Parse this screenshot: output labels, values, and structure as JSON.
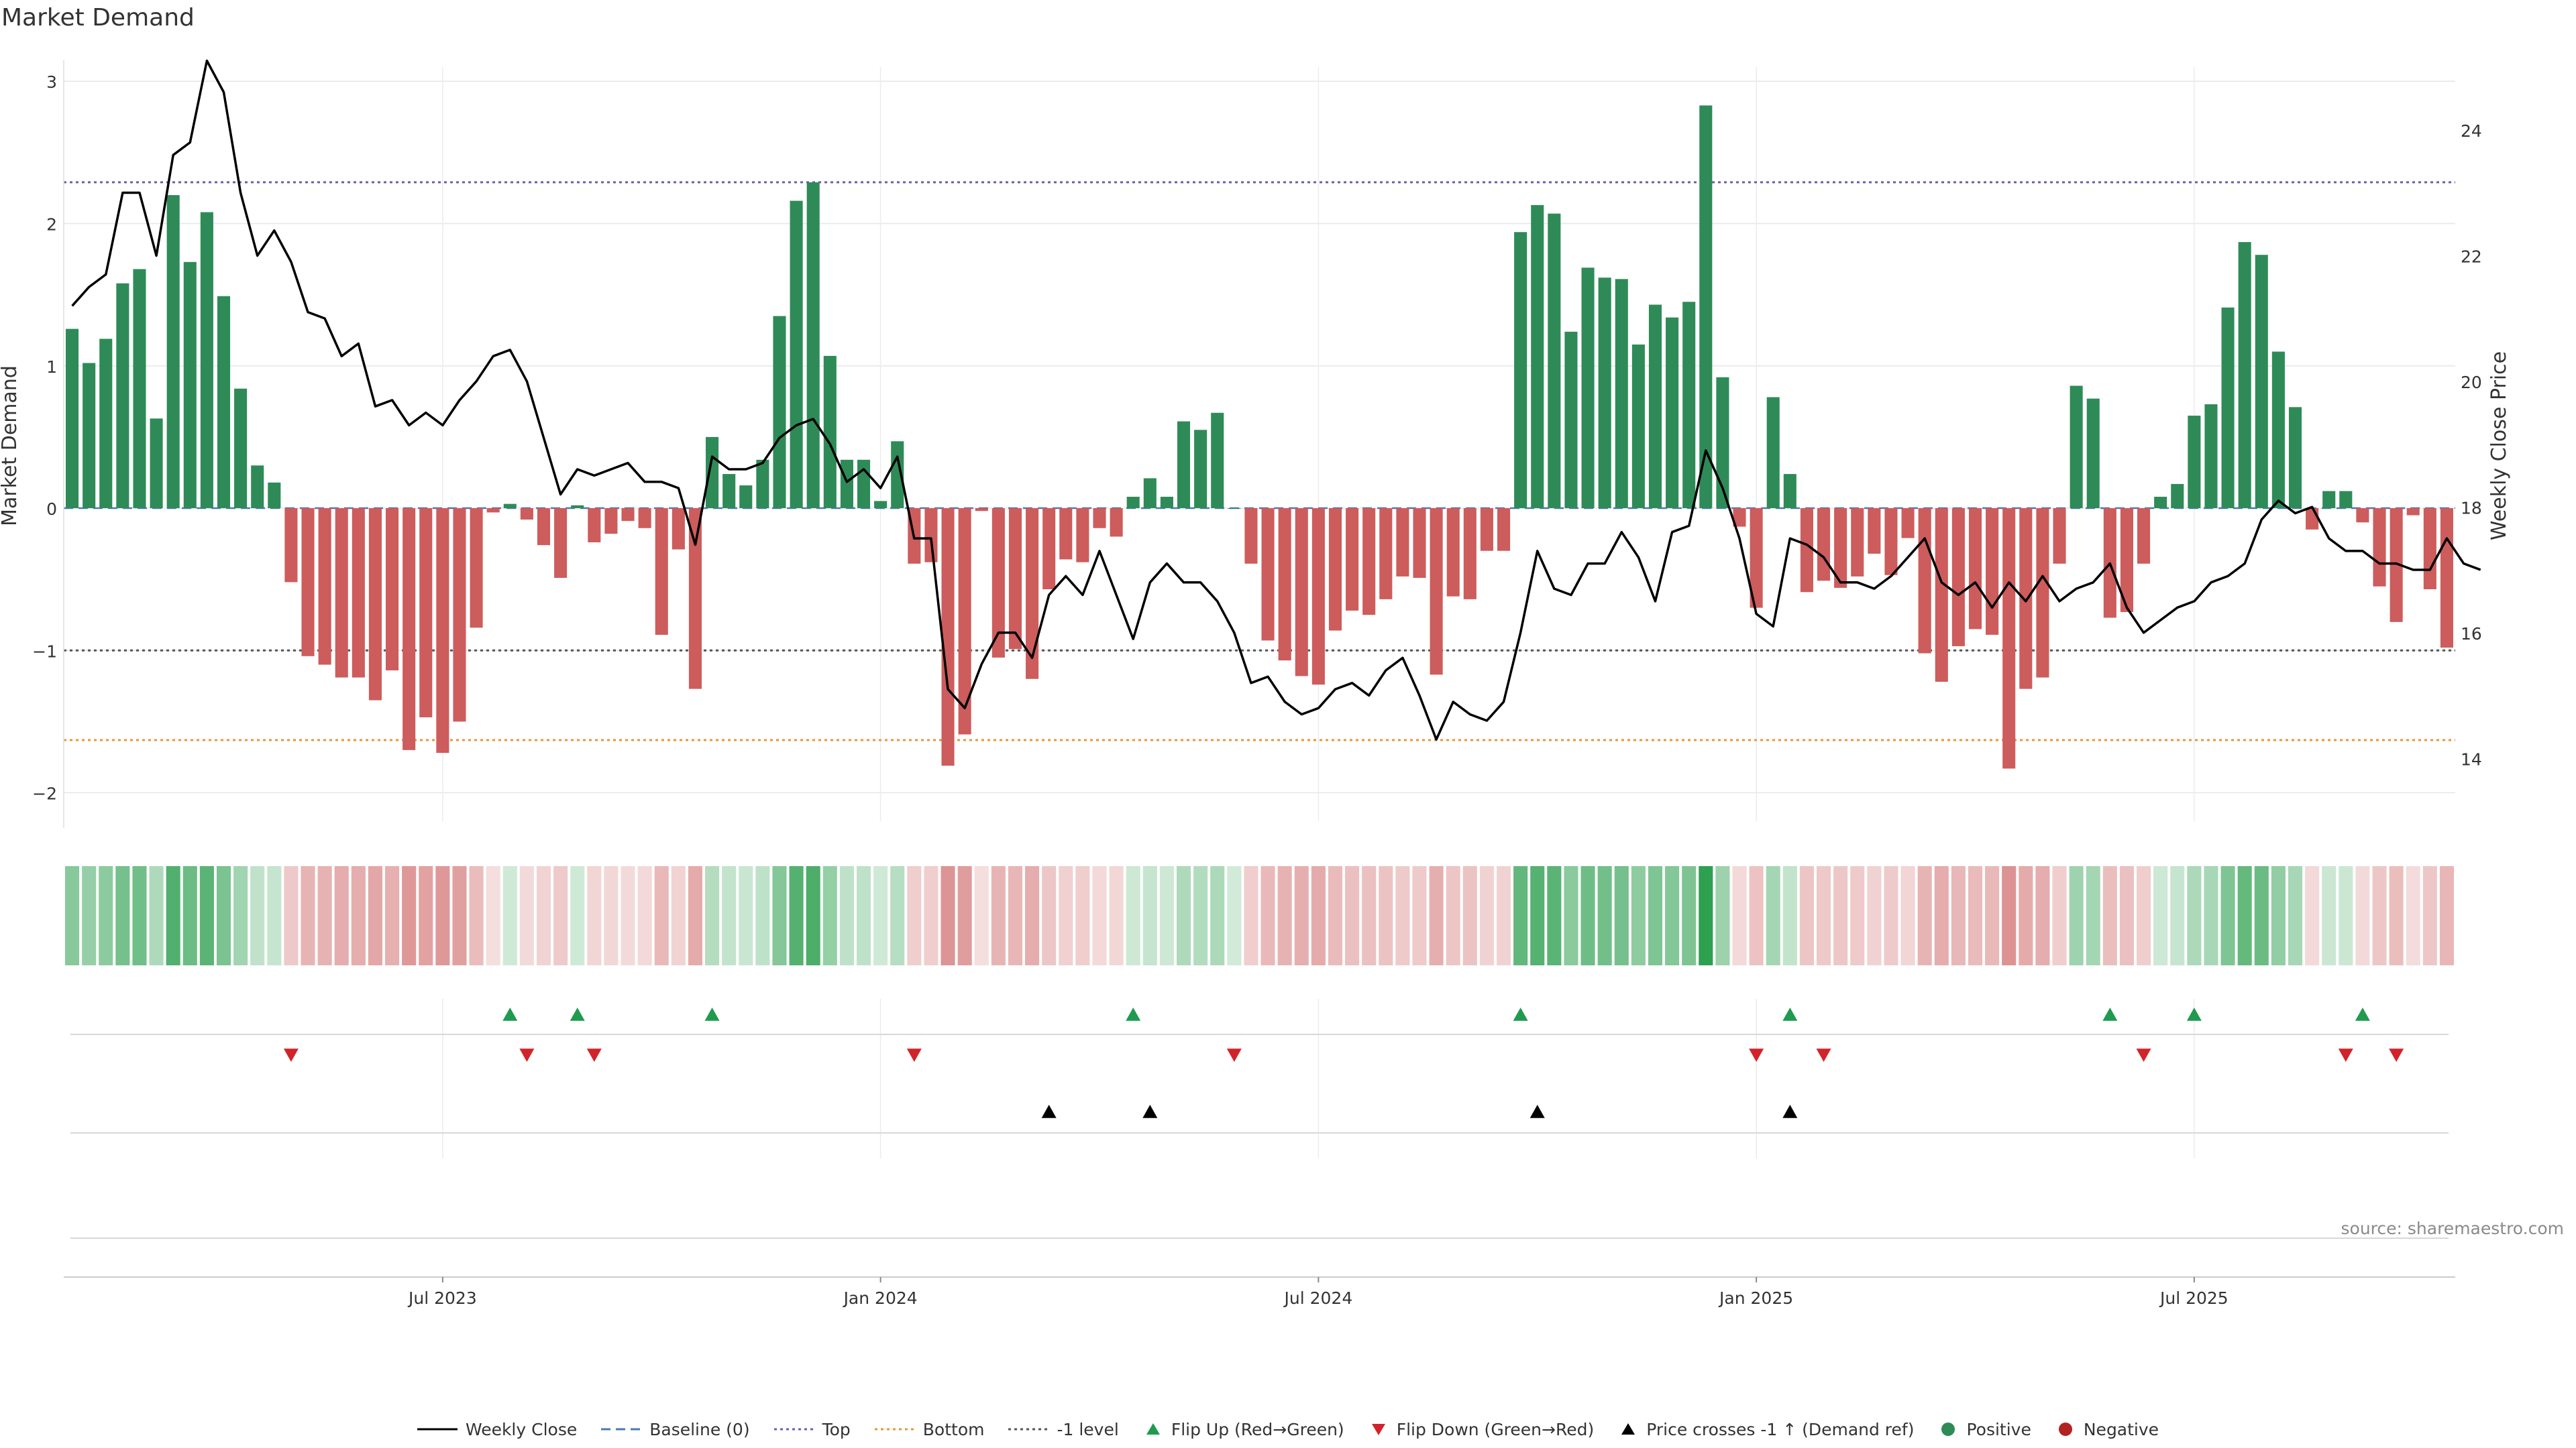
{
  "chart_data": {
    "type": "bar+line",
    "title": "Market Demand",
    "ylabel_left": "Market Demand",
    "ylabel_right": "Weekly Close Price",
    "left_ylim": [
      -2.2,
      3.1
    ],
    "left_yticks": [
      "3",
      "2",
      "1",
      "0",
      "−1",
      "−2"
    ],
    "left_ytick_values": [
      3,
      2,
      1,
      0,
      -1,
      -2
    ],
    "right_ylim": [
      13,
      25
    ],
    "right_yticks": [
      "24",
      "22",
      "20",
      "18",
      "16",
      "14"
    ],
    "right_ytick_values": [
      24,
      22,
      20,
      18,
      16,
      14
    ],
    "x_ticks": [
      {
        "label": "Jul 2023",
        "index": 22
      },
      {
        "label": "Jan 2024",
        "index": 48
      },
      {
        "label": "Jul 2024",
        "index": 74
      },
      {
        "label": "Jan 2025",
        "index": 100
      },
      {
        "label": "Jul 2025",
        "index": 126
      }
    ],
    "reference_lines": {
      "top": 2.29,
      "bottom": -1.63,
      "minus_one": -1.0,
      "baseline": 0
    },
    "demand": [
      1.26,
      1.02,
      1.19,
      1.58,
      1.68,
      0.63,
      2.2,
      1.73,
      2.08,
      1.49,
      0.84,
      0.3,
      0.18,
      -0.52,
      -1.04,
      -1.1,
      -1.19,
      -1.19,
      -1.35,
      -1.14,
      -1.7,
      -1.47,
      -1.72,
      -1.5,
      -0.84,
      -0.03,
      0.03,
      -0.08,
      -0.26,
      -0.49,
      0.02,
      -0.24,
      -0.18,
      -0.09,
      -0.14,
      -0.89,
      -0.29,
      -1.27,
      0.5,
      0.24,
      0.16,
      0.34,
      1.35,
      2.16,
      2.29,
      1.07,
      0.34,
      0.34,
      0.05,
      0.47,
      -0.39,
      -0.38,
      -1.81,
      -1.59,
      -0.02,
      -1.05,
      -0.99,
      -1.2,
      -0.57,
      -0.36,
      -0.38,
      -0.14,
      -0.2,
      0.08,
      0.21,
      0.08,
      0.61,
      0.55,
      0.67,
      0.0,
      -0.39,
      -0.93,
      -1.07,
      -1.18,
      -1.24,
      -0.86,
      -0.72,
      -0.75,
      -0.64,
      -0.48,
      -0.49,
      -1.17,
      -0.62,
      -0.64,
      -0.3,
      -0.3,
      1.94,
      2.13,
      2.07,
      1.24,
      1.69,
      1.62,
      1.61,
      1.15,
      1.43,
      1.34,
      1.45,
      2.83,
      0.92,
      -0.13,
      -0.7,
      0.78,
      0.24,
      -0.59,
      -0.51,
      -0.56,
      -0.48,
      -0.32,
      -0.47,
      -0.21,
      -1.02,
      -1.22,
      -0.97,
      -0.85,
      -0.89,
      -1.83,
      -1.27,
      -1.19,
      -0.39,
      0.86,
      0.77,
      -0.77,
      -0.73,
      -0.39,
      0.08,
      0.17,
      0.65,
      0.73,
      1.41,
      1.87,
      1.78,
      1.1,
      0.71,
      -0.15,
      0.12,
      0.12,
      -0.1,
      -0.55,
      -0.8,
      -0.05,
      -0.57,
      -0.98
    ],
    "weekly_close": [
      21.2,
      21.5,
      21.7,
      23.0,
      23.0,
      22.0,
      23.6,
      23.8,
      25.1,
      24.6,
      23.0,
      22.0,
      22.4,
      21.9,
      21.1,
      21.0,
      20.4,
      20.6,
      19.6,
      19.7,
      19.3,
      19.5,
      19.3,
      19.7,
      20.0,
      20.4,
      20.5,
      20.0,
      19.1,
      18.2,
      18.6,
      18.5,
      18.6,
      18.7,
      18.4,
      18.4,
      18.3,
      17.4,
      18.8,
      18.6,
      18.6,
      18.7,
      19.1,
      19.3,
      19.4,
      19.0,
      18.4,
      18.6,
      18.3,
      18.8,
      17.5,
      17.5,
      15.1,
      14.8,
      15.5,
      16.0,
      16.0,
      15.6,
      16.6,
      16.9,
      16.6,
      17.3,
      16.6,
      15.9,
      16.8,
      17.1,
      16.8,
      16.8,
      16.5,
      16.0,
      15.2,
      15.3,
      14.9,
      14.7,
      14.8,
      15.1,
      15.2,
      15.0,
      15.4,
      15.6,
      15.0,
      14.3,
      14.9,
      14.7,
      14.6,
      14.9,
      16.0,
      17.3,
      16.7,
      16.6,
      17.1,
      17.1,
      17.6,
      17.2,
      16.5,
      17.6,
      17.7,
      18.9,
      18.3,
      17.5,
      16.3,
      16.1,
      17.5,
      17.4,
      17.2,
      16.8,
      16.8,
      16.7,
      16.9,
      17.2,
      17.5,
      16.8,
      16.6,
      16.8,
      16.4,
      16.8,
      16.5,
      16.9,
      16.5,
      16.7,
      16.8,
      17.1,
      16.4,
      16.0,
      16.2,
      16.4,
      16.5,
      16.8,
      16.9,
      17.1,
      17.8,
      18.1,
      17.9,
      18.0,
      17.5,
      17.3,
      17.3,
      17.1,
      17.1,
      17.0,
      17.0,
      17.5,
      17.1,
      17.0
    ],
    "flip_up_indices": [
      26,
      30,
      38,
      63,
      86,
      102,
      121,
      126,
      136
    ],
    "flip_down_indices": [
      13,
      27,
      31,
      50,
      69,
      100,
      104,
      123,
      135,
      138
    ],
    "price_cross_indices": [
      58,
      64,
      87,
      102
    ],
    "legend": [
      {
        "label": "Weekly Close",
        "kind": "solid-line",
        "color": "#000000"
      },
      {
        "label": "Baseline (0)",
        "kind": "dashed-line",
        "color": "#4a78b5"
      },
      {
        "label": "Top",
        "kind": "dotted-line",
        "color": "#6a5fb0"
      },
      {
        "label": "Bottom",
        "kind": "dotted-line",
        "color": "#e8963c"
      },
      {
        "label": "-1 level",
        "kind": "dotted-line",
        "color": "#555555"
      },
      {
        "label": "Flip Up (Red→Green)",
        "kind": "triangle-up",
        "color": "#1f9a4f"
      },
      {
        "label": "Flip Down (Green→Red)",
        "kind": "triangle-down",
        "color": "#d2232a"
      },
      {
        "label": "Price crosses -1 ↑ (Demand ref)",
        "kind": "triangle-up",
        "color": "#000000"
      },
      {
        "label": "Positive",
        "kind": "dot",
        "color": "#2e8b57"
      },
      {
        "label": "Negative",
        "kind": "dot",
        "color": "#b22222"
      }
    ],
    "colors": {
      "positive_bar": "#2e8b57",
      "negative_bar": "#cd5c5c"
    }
  },
  "source": "source: sharemaestro.com"
}
